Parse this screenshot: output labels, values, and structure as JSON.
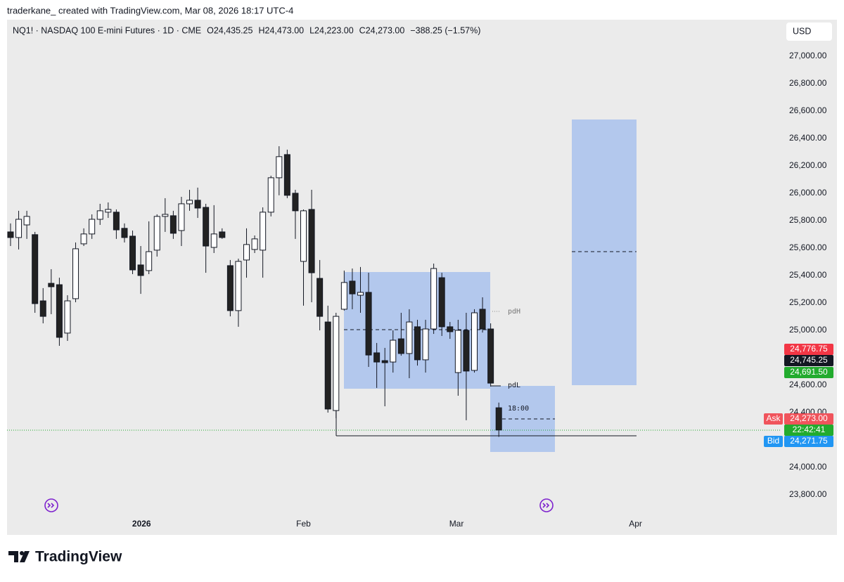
{
  "header": {
    "credit": "traderkane_ created with TradingView.com, Mar 08, 2026 18:17 UTC-4"
  },
  "footer": {
    "brand": "TradingView"
  },
  "chart_data": {
    "type": "candlestick",
    "title": "NQ1! · NASDAQ 100 E-mini Futures · 1D · CME",
    "legend": [
      "O24,435.25",
      "H24,473.00",
      "L24,223.00",
      "C24,273.00",
      "−388.25 (−1.57%)"
    ],
    "currency": "USD",
    "up_color": "#ffffff",
    "down_color": "#222222",
    "open": [
      25718,
      25677,
      25769,
      25698,
      25215,
      25343,
      25333,
      24980,
      25231,
      25631,
      25703,
      25810,
      25862,
      25862,
      25744,
      25687,
      25477,
      25436,
      25585,
      25831,
      25836,
      25728,
      25923,
      25949,
      25897,
      25605,
      25718,
      25472,
      25144,
      25513,
      25590,
      25585,
      25862,
      26113,
      26282,
      26000,
      25503,
      25882,
      25379,
      25061,
      24415,
      25154,
      25359,
      25256,
      25277,
      24836,
      24779,
      24769,
      24938,
      24831,
      25026,
      24785,
      25010,
      25384,
      25026,
      24692,
      25000,
      24708,
      25154,
      25010,
      24435.25
    ],
    "high": [
      25780,
      25872,
      25872,
      25718,
      25308,
      25446,
      25384,
      25256,
      25641,
      25744,
      25846,
      25923,
      25933,
      25882,
      25780,
      25728,
      25615,
      25795,
      25846,
      25964,
      25872,
      25974,
      26025,
      26041,
      25923,
      25913,
      25744,
      25513,
      25523,
      25744,
      25692,
      25897,
      26128,
      26343,
      26318,
      26025,
      25882,
      26025,
      25513,
      25180,
      25128,
      25436,
      25451,
      25462,
      25420,
      24908,
      24872,
      25000,
      25128,
      25154,
      25077,
      25077,
      25487,
      25420,
      25061,
      25077,
      25128,
      25154,
      25241,
      25051,
      24473
    ],
    "low": [
      25615,
      25590,
      25667,
      25128,
      25051,
      25118,
      24887,
      24923,
      25205,
      25615,
      25667,
      25769,
      25820,
      25667,
      25641,
      25410,
      25266,
      25410,
      25538,
      25718,
      25667,
      25615,
      25872,
      25820,
      25420,
      25564,
      25667,
      25102,
      25026,
      25384,
      25564,
      25384,
      25831,
      25985,
      25964,
      25667,
      25180,
      25205,
      25000,
      24400,
      24359,
      25144,
      25154,
      25128,
      24733,
      24580,
      24446,
      24692,
      24815,
      24651,
      24743,
      24692,
      24974,
      24959,
      24938,
      24523,
      24344,
      24692,
      24984,
      24590,
      24223
    ],
    "close": [
      25677,
      25810,
      25831,
      25195,
      25102,
      25318,
      24949,
      25215,
      25595,
      25703,
      25810,
      25872,
      25882,
      25733,
      25677,
      25441,
      25400,
      25574,
      25831,
      25846,
      25708,
      25923,
      25949,
      25892,
      25615,
      25703,
      25677,
      25144,
      25503,
      25626,
      25667,
      25862,
      26113,
      26267,
      25985,
      25872,
      25872,
      25420,
      25102,
      24426,
      25102,
      25349,
      25266,
      25277,
      24820,
      24769,
      24764,
      24928,
      24831,
      25061,
      24785,
      25010,
      25451,
      25026,
      24990,
      25000,
      24703,
      25128,
      25010,
      24615,
      24273
    ],
    "xlim": [
      -0.43,
      94.64
    ],
    "xticks": [
      {
        "value": 16.1,
        "label": "2026"
      },
      {
        "value": 36,
        "label": "Feb"
      },
      {
        "value": 54.8,
        "label": "Mar"
      },
      {
        "value": 76.8,
        "label": "Apr"
      }
    ],
    "ylim": [
      23513,
      27266
    ],
    "yticks": [
      {
        "value": 23800,
        "label": "23,800.00"
      },
      {
        "value": 24000,
        "label": "24,000.00"
      },
      {
        "value": 24200,
        "label": "24,200.00"
      },
      {
        "value": 24400,
        "label": "24,400.00"
      },
      {
        "value": 24600,
        "label": "24,600.00"
      },
      {
        "value": 24800,
        "label": "24,800.00"
      },
      {
        "value": 25000,
        "label": "25,000.00"
      },
      {
        "value": 25200,
        "label": "25,200.00"
      },
      {
        "value": 25400,
        "label": "25,400.00"
      },
      {
        "value": 25600,
        "label": "25,600.00"
      },
      {
        "value": 25800,
        "label": "25,800.00"
      },
      {
        "value": 26000,
        "label": "26,000.00"
      },
      {
        "value": 26200,
        "label": "26,200.00"
      },
      {
        "value": 26400,
        "label": "26,400.00"
      },
      {
        "value": 26600,
        "label": "26,600.00"
      },
      {
        "value": 26800,
        "label": "26,800.00"
      },
      {
        "value": 27000,
        "label": "27,000.00"
      }
    ],
    "annotations": [
      "pdH",
      "pdL",
      "18:00"
    ],
    "price_tags": [
      {
        "label": "24,776.75",
        "color": "#f23645"
      },
      {
        "label": "24,745.25",
        "color": "#131722"
      },
      {
        "label": "24,691.50",
        "color": "#22ab2e"
      }
    ],
    "ask": {
      "name": "Ask",
      "label": "24,273.00",
      "color": "#f0545c"
    },
    "countdown": {
      "label": "22:42:41",
      "color": "#22ab2e"
    },
    "bid": {
      "name": "Bid",
      "label": "24,271.75",
      "color": "#2196f3"
    }
  }
}
